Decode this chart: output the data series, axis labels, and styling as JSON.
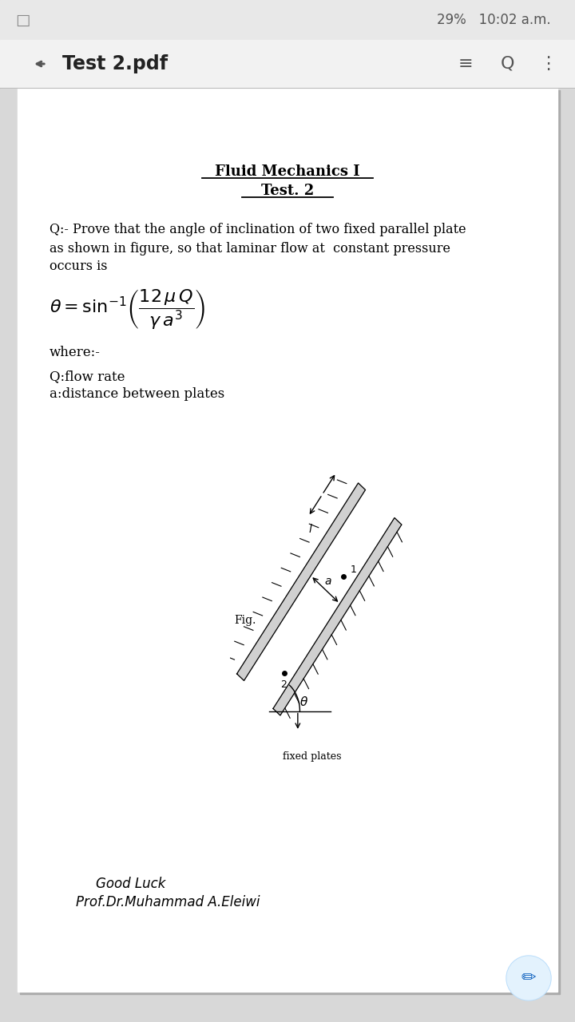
{
  "bg_color": "#d8d8d8",
  "paper_color": "#ffffff",
  "status_bar_bg": "#e8e8e8",
  "toolbar_bg": "#f2f2f2",
  "heading1": "Fluid Mechanics I",
  "heading2": "Test. 2",
  "q_line1": "Q:- Prove that the angle of inclination of two fixed parallel plate",
  "q_line2": "as shown in figure, so that laminar flow at  constant pressure",
  "q_line3": "occurs is",
  "where_text": "where:-",
  "q_def": "Q:flow rate",
  "a_def": "a:distance between plates",
  "fig_label": "Fig.",
  "fixed_plates_label": "fixed plates",
  "good_luck": "Good Luck",
  "prof": "Prof.Dr.Muhammad A.Eleiwi",
  "status_text": "29%   10:02 a.m.",
  "toolbar_title": "Test 2.pdf"
}
